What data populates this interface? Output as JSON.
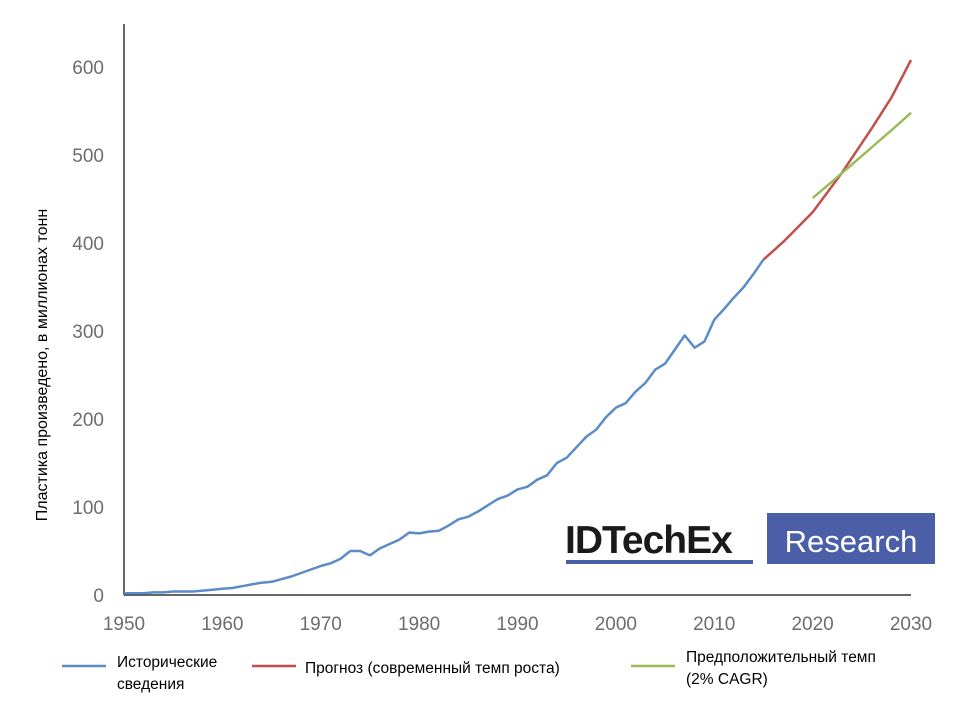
{
  "chart_data": {
    "type": "line",
    "xlabel": "",
    "ylabel": "Пластика произведено, в миллионах тонн",
    "xlim": [
      1950,
      2030
    ],
    "ylim": [
      0,
      650
    ],
    "x_ticks": [
      "1950",
      "1960",
      "1970",
      "1980",
      "1990",
      "2000",
      "2010",
      "2020",
      "2030"
    ],
    "y_ticks": [
      "0",
      "100",
      "200",
      "300",
      "400",
      "500",
      "600"
    ],
    "grid": false,
    "legend_position": "bottom",
    "series": [
      {
        "name": "Исторические сведения",
        "color": "#5b8cc8",
        "points": [
          [
            1950,
            2
          ],
          [
            1951,
            2
          ],
          [
            1952,
            2
          ],
          [
            1953,
            3
          ],
          [
            1954,
            3
          ],
          [
            1955,
            4
          ],
          [
            1956,
            4
          ],
          [
            1957,
            4
          ],
          [
            1958,
            5
          ],
          [
            1959,
            6
          ],
          [
            1960,
            7
          ],
          [
            1961,
            8
          ],
          [
            1962,
            10
          ],
          [
            1963,
            12
          ],
          [
            1964,
            14
          ],
          [
            1965,
            15
          ],
          [
            1966,
            18
          ],
          [
            1967,
            21
          ],
          [
            1968,
            25
          ],
          [
            1969,
            29
          ],
          [
            1970,
            33
          ],
          [
            1971,
            36
          ],
          [
            1972,
            41
          ],
          [
            1973,
            50
          ],
          [
            1974,
            50
          ],
          [
            1975,
            45
          ],
          [
            1976,
            53
          ],
          [
            1977,
            58
          ],
          [
            1978,
            63
          ],
          [
            1979,
            71
          ],
          [
            1980,
            70
          ],
          [
            1981,
            72
          ],
          [
            1982,
            73
          ],
          [
            1983,
            79
          ],
          [
            1984,
            86
          ],
          [
            1985,
            89
          ],
          [
            1986,
            95
          ],
          [
            1987,
            102
          ],
          [
            1988,
            109
          ],
          [
            1989,
            113
          ],
          [
            1990,
            120
          ],
          [
            1991,
            123
          ],
          [
            1992,
            131
          ],
          [
            1993,
            136
          ],
          [
            1994,
            150
          ],
          [
            1995,
            156
          ],
          [
            1996,
            168
          ],
          [
            1997,
            180
          ],
          [
            1998,
            188
          ],
          [
            1999,
            202
          ],
          [
            2000,
            213
          ],
          [
            2001,
            218
          ],
          [
            2002,
            231
          ],
          [
            2003,
            241
          ],
          [
            2004,
            256
          ],
          [
            2005,
            263
          ],
          [
            2006,
            279
          ],
          [
            2007,
            295
          ],
          [
            2008,
            281
          ],
          [
            2009,
            288
          ],
          [
            2010,
            313
          ],
          [
            2011,
            325
          ],
          [
            2012,
            338
          ],
          [
            2013,
            350
          ],
          [
            2014,
            365
          ],
          [
            2015,
            381
          ]
        ]
      },
      {
        "name": "Прогноз (современный темп роста)",
        "color": "#c0504d",
        "points": [
          [
            2015,
            381
          ],
          [
            2017,
            401
          ],
          [
            2020,
            435
          ],
          [
            2023,
            480
          ],
          [
            2026,
            530
          ],
          [
            2028,
            565
          ],
          [
            2030,
            608
          ]
        ]
      },
      {
        "name": "Предположительный темп (2% CAGR)",
        "color": "#9bbb59",
        "points": [
          [
            2020,
            451
          ],
          [
            2022,
            470
          ],
          [
            2025,
            499
          ],
          [
            2028,
            528
          ],
          [
            2030,
            548
          ]
        ]
      }
    ]
  },
  "legend": [
    {
      "line1": "Исторические",
      "line2": "сведения",
      "color": "#5b8cc8"
    },
    {
      "line1": "Прогноз (современный темп роста)",
      "line2": "",
      "color": "#c0504d"
    },
    {
      "line1": "Предположительный темп",
      "line2": "(2% CAGR)",
      "color": "#9bbb59"
    }
  ],
  "logo": {
    "left_text": "IDTechEx",
    "right_text": "Research",
    "bg_color": "#4a5fa8",
    "underline_color": "#4a5fa8"
  }
}
